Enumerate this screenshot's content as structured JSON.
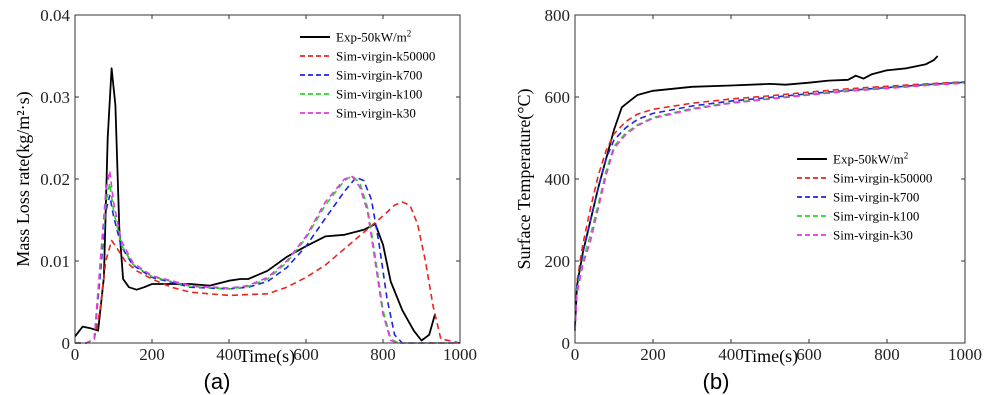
{
  "figure": {
    "panels": [
      "(a)",
      "(b)"
    ]
  },
  "legend_colors": {
    "Exp-50kW/m2": "#000000",
    "Sim-virgin-k50000": "#e8251e",
    "Sim-virgin-k700": "#1f23e0",
    "Sim-virgin-k100": "#2bd62b",
    "Sim-virgin-k30": "#e03ce0"
  },
  "chart_data": [
    {
      "type": "line",
      "caption": "(a)",
      "xlabel": "Time(s)",
      "ylabel": "Mass Loss rate(kg/m²·s)",
      "xlim": [
        0,
        1000
      ],
      "ylim": [
        0,
        0.04
      ],
      "xticks": [
        "0",
        "200",
        "400",
        "600",
        "800",
        "1000"
      ],
      "yticks": [
        "0",
        "0.01",
        "0.02",
        "0.03",
        "0.04"
      ],
      "xtick_values": [
        0,
        200,
        400,
        600,
        800,
        1000
      ],
      "ytick_values": [
        0,
        0.01,
        0.02,
        0.03,
        0.04
      ],
      "grid": false,
      "legend_position": "top-right",
      "series": [
        {
          "name": "Exp-50kW/m2",
          "style": "solid",
          "color": "#000000",
          "x": [
            0,
            20,
            40,
            60,
            75,
            85,
            95,
            105,
            115,
            125,
            140,
            160,
            180,
            200,
            250,
            300,
            350,
            400,
            430,
            450,
            500,
            550,
            600,
            650,
            700,
            750,
            780,
            800,
            820,
            850,
            880,
            900,
            920,
            935
          ],
          "y": [
            0.0008,
            0.002,
            0.0018,
            0.0015,
            0.008,
            0.025,
            0.0335,
            0.029,
            0.014,
            0.0078,
            0.0068,
            0.0065,
            0.0068,
            0.0072,
            0.0072,
            0.0072,
            0.007,
            0.0076,
            0.0078,
            0.0078,
            0.0088,
            0.0105,
            0.0118,
            0.013,
            0.0132,
            0.0138,
            0.0145,
            0.012,
            0.0075,
            0.004,
            0.0015,
            0.0003,
            0.001,
            0.0035
          ]
        },
        {
          "name": "Sim-virgin-k50000",
          "style": "dashed",
          "color": "#e8251e",
          "x": [
            0,
            30,
            50,
            65,
            80,
            95,
            110,
            130,
            160,
            200,
            250,
            300,
            400,
            500,
            550,
            600,
            650,
            700,
            750,
            800,
            830,
            850,
            870,
            890,
            910,
            930,
            950,
            1000
          ],
          "y": [
            0,
            0,
            0.0005,
            0.004,
            0.01,
            0.0125,
            0.0115,
            0.01,
            0.0088,
            0.0078,
            0.0068,
            0.0062,
            0.0058,
            0.006,
            0.0068,
            0.008,
            0.0095,
            0.0115,
            0.0135,
            0.0155,
            0.0168,
            0.0172,
            0.0168,
            0.0145,
            0.01,
            0.0045,
            0.0005,
            0
          ]
        },
        {
          "name": "Sim-virgin-k700",
          "style": "dashed",
          "color": "#1f23e0",
          "x": [
            0,
            30,
            50,
            65,
            80,
            90,
            100,
            120,
            150,
            200,
            300,
            400,
            450,
            500,
            550,
            600,
            650,
            700,
            730,
            750,
            770,
            790,
            810,
            830,
            850,
            1000
          ],
          "y": [
            0,
            0,
            0.0005,
            0.008,
            0.016,
            0.018,
            0.0155,
            0.0118,
            0.0095,
            0.008,
            0.0068,
            0.0066,
            0.0068,
            0.0075,
            0.0092,
            0.0118,
            0.0152,
            0.0185,
            0.0202,
            0.0198,
            0.0175,
            0.012,
            0.0055,
            0.001,
            0,
            0
          ]
        },
        {
          "name": "Sim-virgin-k100",
          "style": "dashed",
          "color": "#2bd62b",
          "x": [
            0,
            30,
            50,
            65,
            80,
            90,
            100,
            120,
            150,
            200,
            300,
            400,
            450,
            500,
            550,
            600,
            650,
            700,
            720,
            740,
            760,
            780,
            800,
            820,
            840,
            1000
          ],
          "y": [
            0,
            0,
            0.0005,
            0.009,
            0.017,
            0.0195,
            0.0162,
            0.012,
            0.0096,
            0.0081,
            0.0069,
            0.0066,
            0.0069,
            0.0078,
            0.0098,
            0.0128,
            0.0168,
            0.0198,
            0.0204,
            0.0195,
            0.0165,
            0.0105,
            0.004,
            0.0005,
            0,
            0
          ]
        },
        {
          "name": "Sim-virgin-k30",
          "style": "dashed",
          "color": "#e03ce0",
          "x": [
            0,
            30,
            50,
            65,
            80,
            90,
            100,
            120,
            150,
            200,
            300,
            400,
            450,
            500,
            550,
            600,
            650,
            700,
            720,
            740,
            760,
            780,
            800,
            820,
            840,
            1000
          ],
          "y": [
            0,
            0,
            0.0005,
            0.0095,
            0.0185,
            0.021,
            0.0172,
            0.0125,
            0.0098,
            0.0082,
            0.007,
            0.0067,
            0.007,
            0.008,
            0.01,
            0.013,
            0.0172,
            0.02,
            0.0203,
            0.019,
            0.016,
            0.0098,
            0.0035,
            0.0003,
            0,
            0
          ]
        }
      ],
      "legend": [
        "Exp-50kW/m2",
        "Sim-virgin-k50000",
        "Sim-virgin-k700",
        "Sim-virgin-k100",
        "Sim-virgin-k30"
      ]
    },
    {
      "type": "line",
      "caption": "(b)",
      "xlabel": "Time(s)",
      "ylabel": "Surface Temperature(°C)",
      "xlim": [
        0,
        1000
      ],
      "ylim": [
        0,
        800
      ],
      "xticks": [
        "0",
        "200",
        "400",
        "600",
        "800",
        "1000"
      ],
      "yticks": [
        "0",
        "200",
        "400",
        "600",
        "800"
      ],
      "xtick_values": [
        0,
        200,
        400,
        600,
        800,
        1000
      ],
      "ytick_values": [
        0,
        200,
        400,
        600,
        800
      ],
      "grid": false,
      "legend_position": "center-right",
      "series": [
        {
          "name": "Exp-50kW/m2",
          "style": "solid",
          "color": "#000000",
          "x": [
            0,
            5,
            20,
            40,
            60,
            80,
            100,
            120,
            140,
            160,
            200,
            300,
            400,
            500,
            540,
            600,
            650,
            700,
            720,
            740,
            760,
            800,
            850,
            900,
            920,
            930
          ],
          "y": [
            40,
            140,
            220,
            300,
            380,
            450,
            520,
            575,
            590,
            605,
            615,
            625,
            628,
            632,
            630,
            635,
            640,
            642,
            652,
            645,
            655,
            665,
            670,
            680,
            690,
            700
          ]
        },
        {
          "name": "Sim-virgin-k50000",
          "style": "dashed",
          "color": "#e8251e",
          "x": [
            0,
            5,
            20,
            40,
            60,
            80,
            100,
            130,
            160,
            200,
            300,
            400,
            500,
            600,
            700,
            800,
            900,
            1000
          ],
          "y": [
            30,
            150,
            240,
            330,
            410,
            470,
            510,
            540,
            558,
            570,
            585,
            595,
            603,
            612,
            620,
            626,
            632,
            637
          ]
        },
        {
          "name": "Sim-virgin-k700",
          "style": "dashed",
          "color": "#1f23e0",
          "x": [
            0,
            5,
            20,
            40,
            60,
            80,
            100,
            130,
            160,
            200,
            300,
            400,
            500,
            600,
            700,
            800,
            900,
            1000
          ],
          "y": [
            30,
            140,
            220,
            300,
            380,
            450,
            495,
            525,
            545,
            560,
            578,
            590,
            599,
            608,
            616,
            623,
            630,
            636
          ]
        },
        {
          "name": "Sim-virgin-k100",
          "style": "dashed",
          "color": "#2bd62b",
          "x": [
            0,
            5,
            20,
            40,
            60,
            80,
            100,
            130,
            160,
            200,
            300,
            400,
            500,
            600,
            700,
            800,
            900,
            1000
          ],
          "y": [
            30,
            130,
            200,
            265,
            340,
            420,
            480,
            512,
            532,
            550,
            572,
            586,
            596,
            606,
            615,
            622,
            629,
            635
          ]
        },
        {
          "name": "Sim-virgin-k30",
          "style": "dashed",
          "color": "#e03ce0",
          "x": [
            0,
            5,
            20,
            40,
            60,
            80,
            100,
            130,
            160,
            200,
            300,
            400,
            500,
            600,
            700,
            800,
            900,
            1000
          ],
          "y": [
            30,
            120,
            190,
            250,
            330,
            410,
            475,
            508,
            530,
            548,
            570,
            585,
            595,
            605,
            614,
            621,
            628,
            634
          ]
        }
      ],
      "legend": [
        "Exp-50kW/m2",
        "Sim-virgin-k50000",
        "Sim-virgin-k700",
        "Sim-virgin-k100",
        "Sim-virgin-k30"
      ]
    }
  ]
}
